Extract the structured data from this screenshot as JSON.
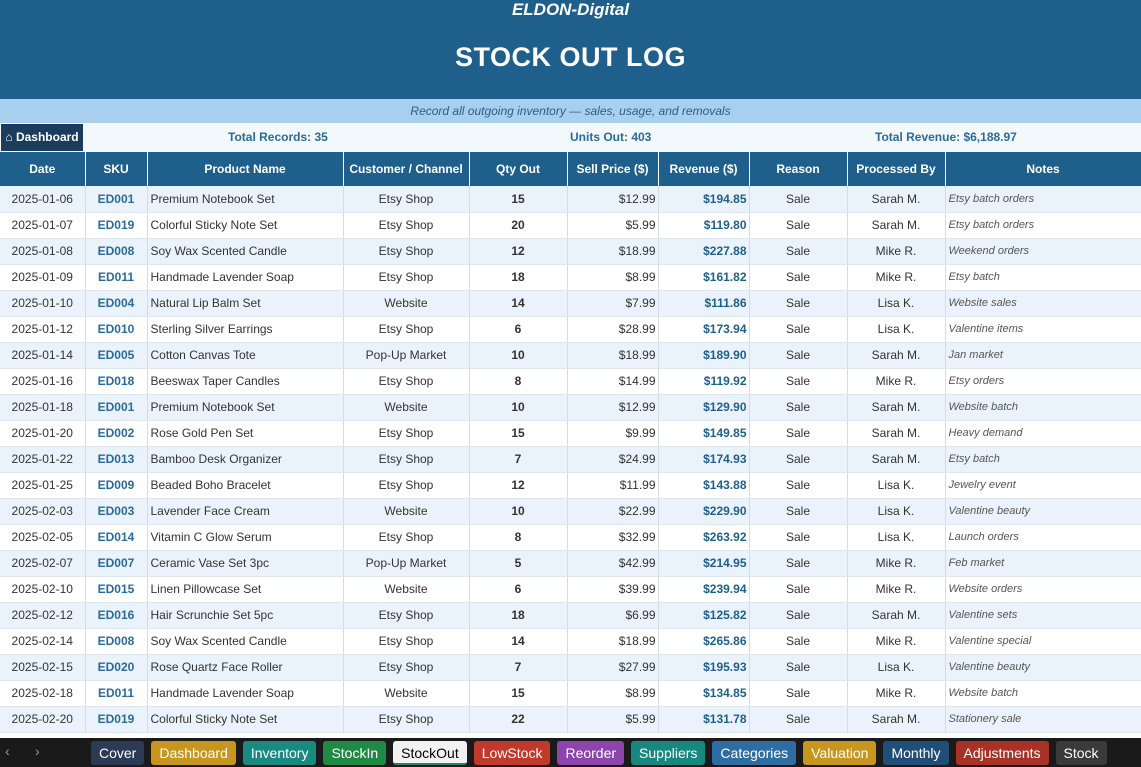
{
  "header": {
    "brand": "ELDON-Digital",
    "title": "STOCK OUT LOG",
    "subtitle": "Record all outgoing inventory — sales, usage, and removals"
  },
  "summary": {
    "dashboard_button": "⌂ Dashboard",
    "total_records": "Total Records: 35",
    "units_out": "Units Out: 403",
    "total_revenue": "Total Revenue: $6,188.97"
  },
  "columns": [
    "Date",
    "SKU",
    "Product Name",
    "Customer / Channel",
    "Qty Out",
    "Sell Price ($)",
    "Revenue ($)",
    "Reason",
    "Processed By",
    "Notes"
  ],
  "rows": [
    [
      "2025-01-06",
      "ED001",
      "Premium Notebook Set",
      "Etsy Shop",
      "15",
      "$12.99",
      "$194.85",
      "Sale",
      "Sarah M.",
      "Etsy batch orders"
    ],
    [
      "2025-01-07",
      "ED019",
      "Colorful Sticky Note Set",
      "Etsy Shop",
      "20",
      "$5.99",
      "$119.80",
      "Sale",
      "Sarah M.",
      "Etsy batch orders"
    ],
    [
      "2025-01-08",
      "ED008",
      "Soy Wax Scented Candle",
      "Etsy Shop",
      "12",
      "$18.99",
      "$227.88",
      "Sale",
      "Mike R.",
      "Weekend orders"
    ],
    [
      "2025-01-09",
      "ED011",
      "Handmade Lavender Soap",
      "Etsy Shop",
      "18",
      "$8.99",
      "$161.82",
      "Sale",
      "Mike R.",
      "Etsy batch"
    ],
    [
      "2025-01-10",
      "ED004",
      "Natural Lip Balm Set",
      "Website",
      "14",
      "$7.99",
      "$111.86",
      "Sale",
      "Lisa K.",
      "Website sales"
    ],
    [
      "2025-01-12",
      "ED010",
      "Sterling Silver Earrings",
      "Etsy Shop",
      "6",
      "$28.99",
      "$173.94",
      "Sale",
      "Lisa K.",
      "Valentine items"
    ],
    [
      "2025-01-14",
      "ED005",
      "Cotton Canvas Tote",
      "Pop-Up Market",
      "10",
      "$18.99",
      "$189.90",
      "Sale",
      "Sarah M.",
      "Jan market"
    ],
    [
      "2025-01-16",
      "ED018",
      "Beeswax Taper Candles",
      "Etsy Shop",
      "8",
      "$14.99",
      "$119.92",
      "Sale",
      "Mike R.",
      "Etsy orders"
    ],
    [
      "2025-01-18",
      "ED001",
      "Premium Notebook Set",
      "Website",
      "10",
      "$12.99",
      "$129.90",
      "Sale",
      "Sarah M.",
      "Website batch"
    ],
    [
      "2025-01-20",
      "ED002",
      "Rose Gold Pen Set",
      "Etsy Shop",
      "15",
      "$9.99",
      "$149.85",
      "Sale",
      "Sarah M.",
      "Heavy demand"
    ],
    [
      "2025-01-22",
      "ED013",
      "Bamboo Desk Organizer",
      "Etsy Shop",
      "7",
      "$24.99",
      "$174.93",
      "Sale",
      "Sarah M.",
      "Etsy batch"
    ],
    [
      "2025-01-25",
      "ED009",
      "Beaded Boho Bracelet",
      "Etsy Shop",
      "12",
      "$11.99",
      "$143.88",
      "Sale",
      "Lisa K.",
      "Jewelry event"
    ],
    [
      "2025-02-03",
      "ED003",
      "Lavender Face Cream",
      "Website",
      "10",
      "$22.99",
      "$229.90",
      "Sale",
      "Lisa K.",
      "Valentine beauty"
    ],
    [
      "2025-02-05",
      "ED014",
      "Vitamin C Glow Serum",
      "Etsy Shop",
      "8",
      "$32.99",
      "$263.92",
      "Sale",
      "Lisa K.",
      "Launch orders"
    ],
    [
      "2025-02-07",
      "ED007",
      "Ceramic Vase Set 3pc",
      "Pop-Up Market",
      "5",
      "$42.99",
      "$214.95",
      "Sale",
      "Mike R.",
      "Feb market"
    ],
    [
      "2025-02-10",
      "ED015",
      "Linen Pillowcase Set",
      "Website",
      "6",
      "$39.99",
      "$239.94",
      "Sale",
      "Mike R.",
      "Website orders"
    ],
    [
      "2025-02-12",
      "ED016",
      "Hair Scrunchie Set 5pc",
      "Etsy Shop",
      "18",
      "$6.99",
      "$125.82",
      "Sale",
      "Sarah M.",
      "Valentine sets"
    ],
    [
      "2025-02-14",
      "ED008",
      "Soy Wax Scented Candle",
      "Etsy Shop",
      "14",
      "$18.99",
      "$265.86",
      "Sale",
      "Mike R.",
      "Valentine special"
    ],
    [
      "2025-02-15",
      "ED020",
      "Rose Quartz Face Roller",
      "Etsy Shop",
      "7",
      "$27.99",
      "$195.93",
      "Sale",
      "Lisa K.",
      "Valentine beauty"
    ],
    [
      "2025-02-18",
      "ED011",
      "Handmade Lavender Soap",
      "Website",
      "15",
      "$8.99",
      "$134.85",
      "Sale",
      "Mike R.",
      "Website batch"
    ],
    [
      "2025-02-20",
      "ED019",
      "Colorful Sticky Note Set",
      "Etsy Shop",
      "22",
      "$5.99",
      "$131.78",
      "Sale",
      "Sarah M.",
      "Stationery sale"
    ]
  ],
  "sheet_tabs": [
    {
      "label": "Cover",
      "color": "#2b3a55"
    },
    {
      "label": "Dashboard",
      "color": "#c8961e"
    },
    {
      "label": "Inventory",
      "color": "#188a82"
    },
    {
      "label": "StockIn",
      "color": "#1e8a44"
    },
    {
      "label": "StockOut",
      "color": "#f2f2f2",
      "active": true
    },
    {
      "label": "LowStock",
      "color": "#c0392b"
    },
    {
      "label": "Reorder",
      "color": "#8e44ad"
    },
    {
      "label": "Suppliers",
      "color": "#17887e"
    },
    {
      "label": "Categories",
      "color": "#2e6da4"
    },
    {
      "label": "Valuation",
      "color": "#c8961e"
    },
    {
      "label": "Monthly",
      "color": "#1f4e79"
    },
    {
      "label": "Adjustments",
      "color": "#a93226"
    },
    {
      "label": "Stock",
      "color": "#3a3a3a"
    }
  ],
  "nav": {
    "prev": "‹",
    "next": "›"
  },
  "colors": {
    "header_blue": "#1f5f8b",
    "subtitle_band": "#a8d0ee",
    "accent_text": "#2a6b9b"
  }
}
